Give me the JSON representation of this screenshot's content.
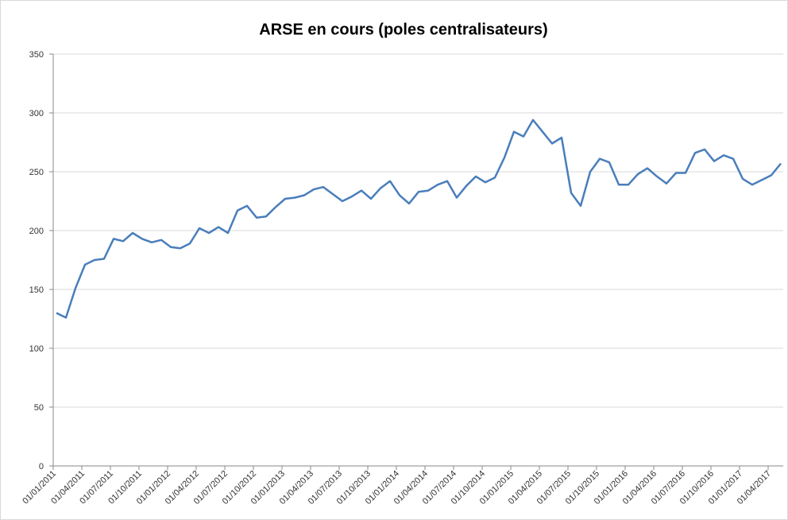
{
  "chart_data": {
    "type": "line",
    "title": "ARSE en cours (poles centralisateurs)",
    "categories": [
      "01/01/2011",
      null,
      null,
      "01/04/2011",
      null,
      null,
      "01/07/2011",
      null,
      null,
      "01/10/2011",
      null,
      null,
      "01/01/2012",
      null,
      null,
      "01/04/2012",
      null,
      null,
      "01/07/2012",
      null,
      null,
      "01/10/2012",
      null,
      null,
      "01/01/2013",
      null,
      null,
      "01/04/2013",
      null,
      null,
      "01/07/2013",
      null,
      null,
      "01/10/2013",
      null,
      null,
      "01/01/2014",
      null,
      null,
      "01/04/2014",
      null,
      null,
      "01/07/2014",
      null,
      null,
      "01/10/2014",
      null,
      null,
      "01/01/2015",
      null,
      null,
      "01/04/2015",
      null,
      null,
      "01/07/2015",
      null,
      null,
      "01/10/2015",
      null,
      null,
      "01/01/2016",
      null,
      null,
      "01/04/2016",
      null,
      null,
      "01/07/2016",
      null,
      null,
      "01/10/2016",
      null,
      null,
      "01/01/2017",
      null,
      null,
      "01/04/2017",
      null
    ],
    "series": [
      {
        "name": "ARSE en cours",
        "color": "#4a7ebb",
        "values": [
          130,
          126,
          151,
          171,
          175,
          176,
          193,
          191,
          198,
          193,
          190,
          192,
          186,
          185,
          189,
          202,
          198,
          203,
          198,
          217,
          221,
          211,
          212,
          220,
          227,
          228,
          230,
          235,
          237,
          231,
          225,
          229,
          234,
          227,
          236,
          242,
          230,
          223,
          233,
          234,
          239,
          242,
          228,
          238,
          246,
          241,
          245,
          262,
          284,
          280,
          294,
          284,
          274,
          279,
          232,
          221,
          250,
          261,
          258,
          239,
          239,
          248,
          253,
          246,
          240,
          249,
          249,
          266,
          269,
          259,
          264,
          261,
          244,
          239,
          243,
          247,
          257
        ]
      }
    ],
    "ylim": [
      0,
      350
    ],
    "yticks": [
      0,
      50,
      100,
      150,
      200,
      250,
      300,
      350
    ],
    "grid": true
  }
}
